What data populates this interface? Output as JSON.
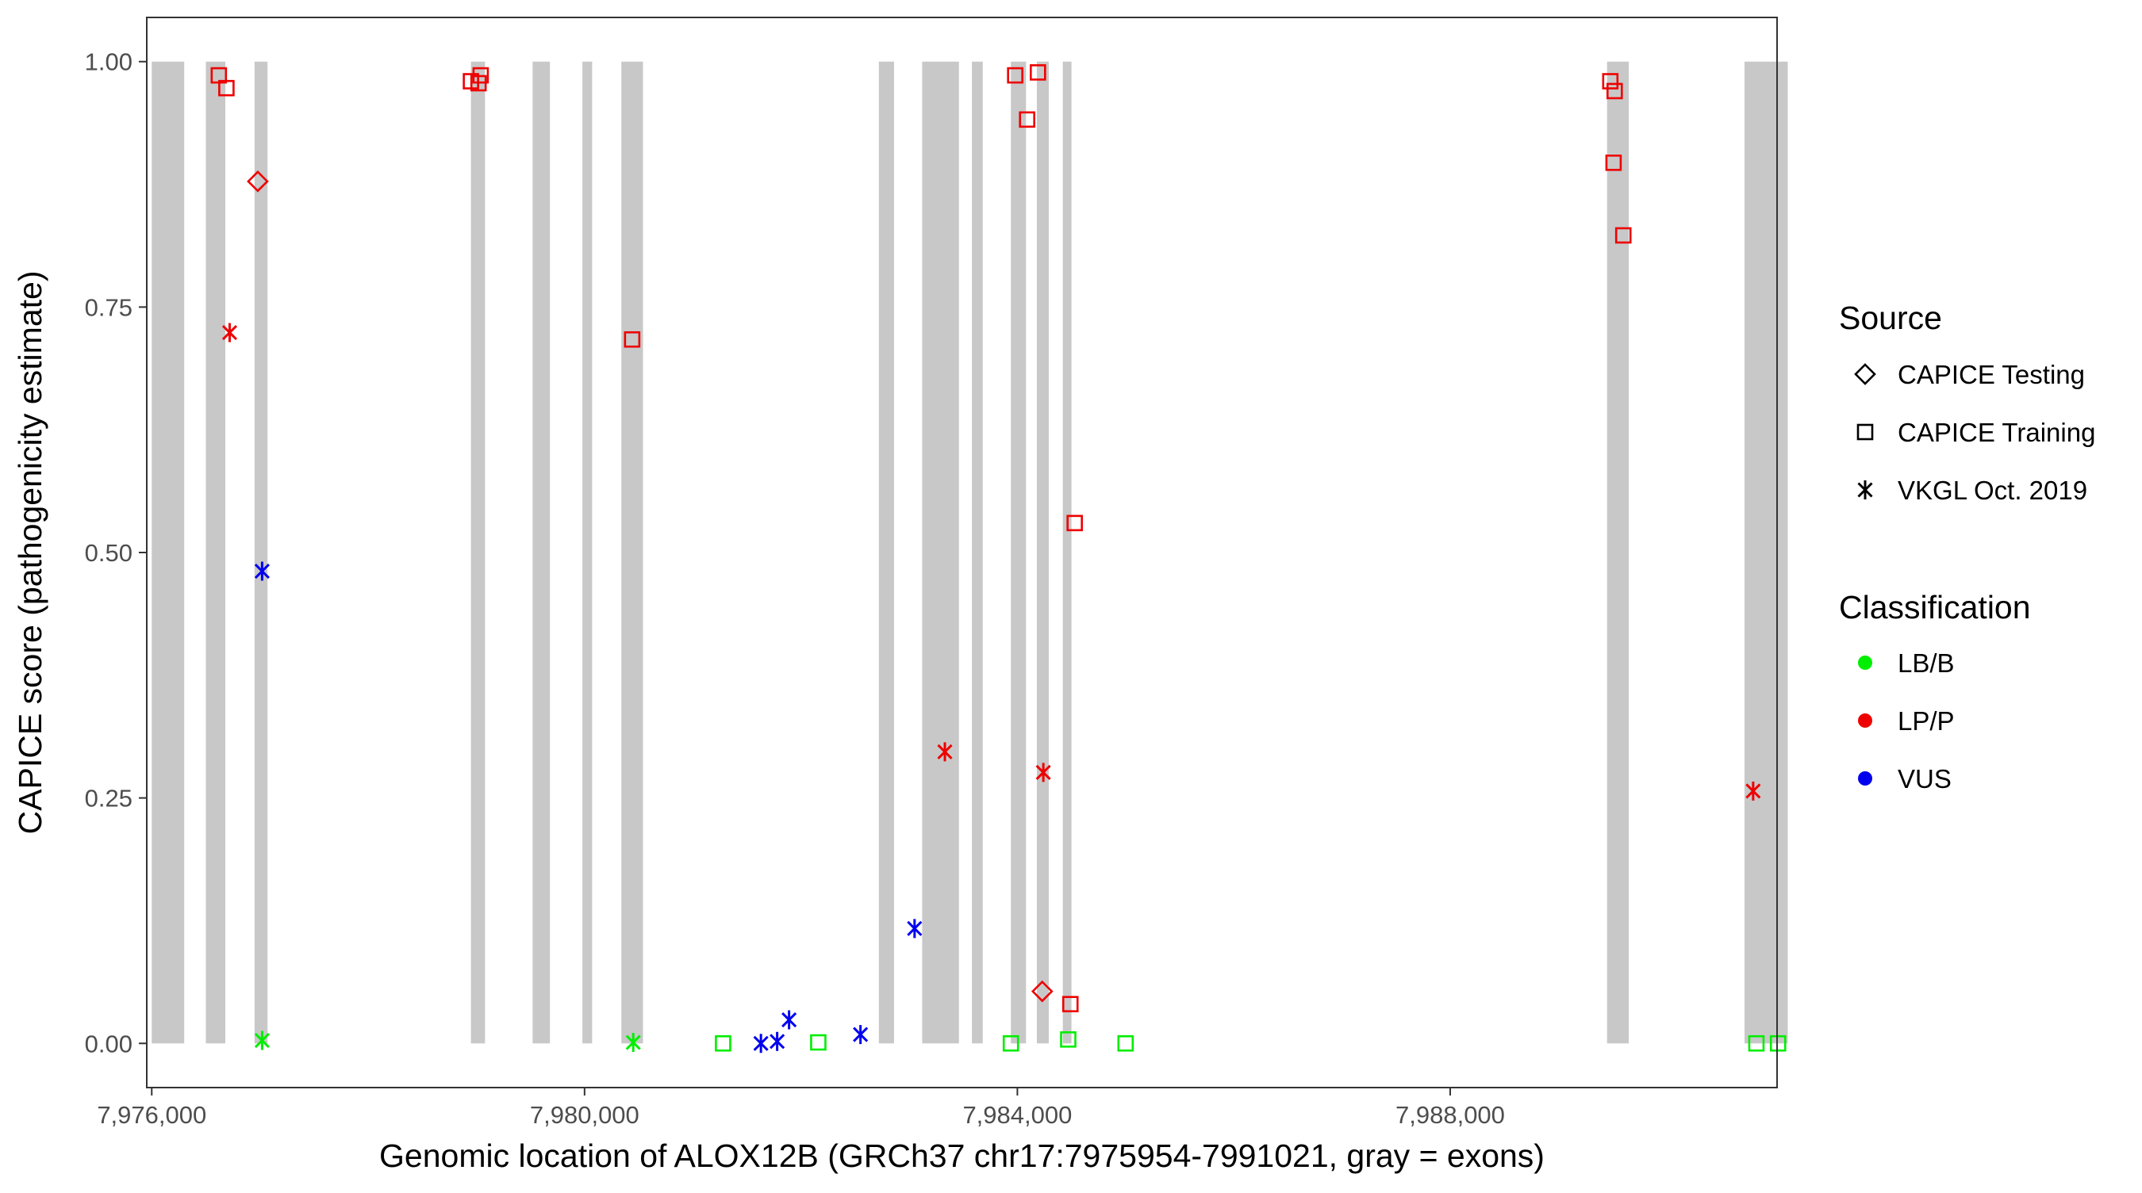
{
  "chart_data": {
    "type": "scatter",
    "xlabel": "Genomic location of ALOX12B (GRCh37 chr17:7975954-7991021, gray = exons)",
    "ylabel": "CAPICE score (pathogenicity estimate)",
    "xlim": [
      7975954,
      7991021
    ],
    "ylim": [
      -0.045,
      1.045
    ],
    "x_ticks": [
      7976000,
      7980000,
      7984000,
      7988000
    ],
    "x_tick_labels": [
      "7,976,000",
      "7,980,000",
      "7,984,000",
      "7,988,000"
    ],
    "y_ticks": [
      0,
      0.25,
      0.5,
      0.75,
      1.0
    ],
    "y_tick_labels": [
      "0.00",
      "0.25",
      "0.50",
      "0.75",
      "1.00"
    ],
    "grid": false,
    "exons": [
      [
        7976000,
        7976300
      ],
      [
        7976500,
        7976680
      ],
      [
        7976950,
        7977070
      ],
      [
        7978950,
        7979080
      ],
      [
        7979520,
        7979680
      ],
      [
        7979980,
        7980070
      ],
      [
        7980340,
        7980540
      ],
      [
        7982720,
        7982860
      ],
      [
        7983120,
        7983460
      ],
      [
        7983580,
        7983680
      ],
      [
        7983940,
        7984080
      ],
      [
        7984180,
        7984290
      ],
      [
        7984420,
        7984500
      ],
      [
        7989450,
        7989650
      ],
      [
        7990720,
        7991120
      ]
    ],
    "exon_color": "#c8c8c8",
    "legend": {
      "placement": "right",
      "source_title": "Source",
      "source_items": [
        {
          "label": "CAPICE Testing",
          "shape": "diamond"
        },
        {
          "label": "CAPICE Training",
          "shape": "square"
        },
        {
          "label": "VKGL Oct. 2019",
          "shape": "asterisk"
        }
      ],
      "class_title": "Classification",
      "class_items": [
        {
          "label": "LB/B",
          "color": "#00ee00"
        },
        {
          "label": "LP/P",
          "color": "#ee0000"
        },
        {
          "label": "VUS",
          "color": "#0000ee"
        }
      ]
    },
    "points": [
      {
        "x": 7976620,
        "y": 0.986,
        "source": "CAPICE Training",
        "class": "LP/P"
      },
      {
        "x": 7976690,
        "y": 0.973,
        "source": "CAPICE Training",
        "class": "LP/P"
      },
      {
        "x": 7976980,
        "y": 0.878,
        "source": "CAPICE Testing",
        "class": "LP/P"
      },
      {
        "x": 7976720,
        "y": 0.724,
        "source": "VKGL Oct. 2019",
        "class": "LP/P"
      },
      {
        "x": 7977020,
        "y": 0.481,
        "source": "VKGL Oct. 2019",
        "class": "VUS"
      },
      {
        "x": 7977020,
        "y": 0.003,
        "source": "VKGL Oct. 2019",
        "class": "LB/B"
      },
      {
        "x": 7978950,
        "y": 0.98,
        "source": "CAPICE Training",
        "class": "LP/P"
      },
      {
        "x": 7979020,
        "y": 0.978,
        "source": "CAPICE Training",
        "class": "LP/P"
      },
      {
        "x": 7979040,
        "y": 0.986,
        "source": "CAPICE Training",
        "class": "LP/P"
      },
      {
        "x": 7980440,
        "y": 0.717,
        "source": "CAPICE Training",
        "class": "LP/P"
      },
      {
        "x": 7980450,
        "y": 0.001,
        "source": "VKGL Oct. 2019",
        "class": "LB/B"
      },
      {
        "x": 7981280,
        "y": 0.0,
        "source": "CAPICE Training",
        "class": "LB/B"
      },
      {
        "x": 7981630,
        "y": 0.0,
        "source": "VKGL Oct. 2019",
        "class": "VUS"
      },
      {
        "x": 7981780,
        "y": 0.002,
        "source": "VKGL Oct. 2019",
        "class": "VUS"
      },
      {
        "x": 7981890,
        "y": 0.024,
        "source": "VKGL Oct. 2019",
        "class": "VUS"
      },
      {
        "x": 7982160,
        "y": 0.001,
        "source": "CAPICE Training",
        "class": "LB/B"
      },
      {
        "x": 7982550,
        "y": 0.009,
        "source": "VKGL Oct. 2019",
        "class": "VUS"
      },
      {
        "x": 7983050,
        "y": 0.117,
        "source": "VKGL Oct. 2019",
        "class": "VUS"
      },
      {
        "x": 7983330,
        "y": 0.297,
        "source": "VKGL Oct. 2019",
        "class": "LP/P"
      },
      {
        "x": 7983980,
        "y": 0.986,
        "source": "CAPICE Training",
        "class": "LP/P"
      },
      {
        "x": 7984190,
        "y": 0.989,
        "source": "CAPICE Training",
        "class": "LP/P"
      },
      {
        "x": 7984090,
        "y": 0.941,
        "source": "CAPICE Training",
        "class": "LP/P"
      },
      {
        "x": 7984530,
        "y": 0.53,
        "source": "CAPICE Training",
        "class": "LP/P"
      },
      {
        "x": 7984240,
        "y": 0.276,
        "source": "VKGL Oct. 2019",
        "class": "LP/P"
      },
      {
        "x": 7984230,
        "y": 0.053,
        "source": "CAPICE Testing",
        "class": "LP/P"
      },
      {
        "x": 7984490,
        "y": 0.04,
        "source": "CAPICE Training",
        "class": "LP/P"
      },
      {
        "x": 7983940,
        "y": 0.0,
        "source": "CAPICE Training",
        "class": "LB/B"
      },
      {
        "x": 7984470,
        "y": 0.004,
        "source": "CAPICE Training",
        "class": "LB/B"
      },
      {
        "x": 7985000,
        "y": 0.0,
        "source": "CAPICE Training",
        "class": "LB/B"
      },
      {
        "x": 7989480,
        "y": 0.98,
        "source": "CAPICE Training",
        "class": "LP/P"
      },
      {
        "x": 7989520,
        "y": 0.97,
        "source": "CAPICE Training",
        "class": "LP/P"
      },
      {
        "x": 7989510,
        "y": 0.897,
        "source": "CAPICE Training",
        "class": "LP/P"
      },
      {
        "x": 7989600,
        "y": 0.823,
        "source": "CAPICE Training",
        "class": "LP/P"
      },
      {
        "x": 7990800,
        "y": 0.257,
        "source": "VKGL Oct. 2019",
        "class": "LP/P"
      },
      {
        "x": 7990830,
        "y": 0.0,
        "source": "CAPICE Training",
        "class": "LB/B"
      },
      {
        "x": 7991030,
        "y": 0.0,
        "source": "CAPICE Training",
        "class": "LB/B"
      }
    ]
  }
}
